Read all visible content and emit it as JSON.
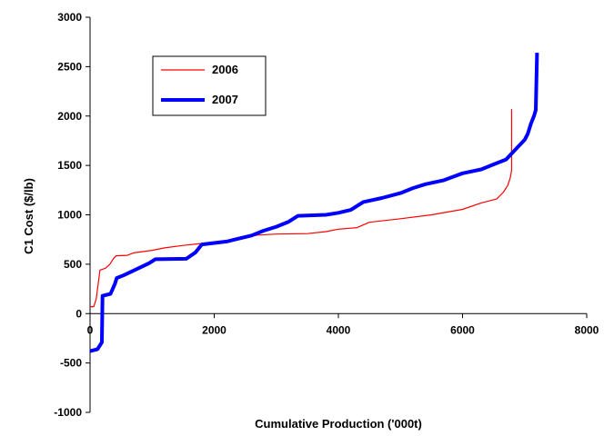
{
  "chart_data": {
    "type": "line",
    "title": "",
    "xlabel": "Cumulative Production ('000t)",
    "ylabel": "C1 Cost ($/lb)",
    "xlim": [
      0,
      8000
    ],
    "ylim": [
      -1000,
      3000
    ],
    "xticks": [
      0,
      2000,
      4000,
      6000,
      8000
    ],
    "yticks": [
      -1000,
      -500,
      0,
      500,
      1000,
      1500,
      2000,
      2500,
      3000
    ],
    "grid": false,
    "legend": "top-left-inside",
    "series": [
      {
        "name": "2006",
        "color": "#ff0000",
        "width": "thin",
        "points": [
          [
            0,
            70
          ],
          [
            60,
            70
          ],
          [
            100,
            150
          ],
          [
            160,
            440
          ],
          [
            250,
            460
          ],
          [
            320,
            500
          ],
          [
            380,
            560
          ],
          [
            420,
            585
          ],
          [
            600,
            590
          ],
          [
            700,
            615
          ],
          [
            1000,
            640
          ],
          [
            1200,
            665
          ],
          [
            1500,
            690
          ],
          [
            1800,
            710
          ],
          [
            2100,
            730
          ],
          [
            2400,
            760
          ],
          [
            2700,
            795
          ],
          [
            3000,
            805
          ],
          [
            3500,
            810
          ],
          [
            3800,
            830
          ],
          [
            4000,
            855
          ],
          [
            4300,
            870
          ],
          [
            4500,
            925
          ],
          [
            5000,
            960
          ],
          [
            5500,
            1000
          ],
          [
            6000,
            1055
          ],
          [
            6300,
            1120
          ],
          [
            6550,
            1160
          ],
          [
            6660,
            1230
          ],
          [
            6730,
            1300
          ],
          [
            6770,
            1380
          ],
          [
            6790,
            1450
          ],
          [
            6790,
            2070
          ]
        ]
      },
      {
        "name": "2007",
        "color": "#0000ff",
        "width": "thick",
        "points": [
          [
            0,
            -380
          ],
          [
            120,
            -360
          ],
          [
            190,
            -290
          ],
          [
            200,
            180
          ],
          [
            330,
            200
          ],
          [
            400,
            300
          ],
          [
            430,
            360
          ],
          [
            550,
            390
          ],
          [
            750,
            450
          ],
          [
            950,
            510
          ],
          [
            1050,
            550
          ],
          [
            1550,
            555
          ],
          [
            1700,
            620
          ],
          [
            1800,
            700
          ],
          [
            2200,
            730
          ],
          [
            2600,
            790
          ],
          [
            2800,
            840
          ],
          [
            3000,
            880
          ],
          [
            3200,
            930
          ],
          [
            3350,
            990
          ],
          [
            3800,
            1000
          ],
          [
            4000,
            1020
          ],
          [
            4200,
            1050
          ],
          [
            4400,
            1130
          ],
          [
            4700,
            1170
          ],
          [
            5000,
            1220
          ],
          [
            5200,
            1270
          ],
          [
            5400,
            1310
          ],
          [
            5700,
            1350
          ],
          [
            6000,
            1420
          ],
          [
            6300,
            1460
          ],
          [
            6500,
            1510
          ],
          [
            6700,
            1560
          ],
          [
            6850,
            1660
          ],
          [
            7000,
            1760
          ],
          [
            7050,
            1820
          ],
          [
            7100,
            1920
          ],
          [
            7150,
            2000
          ],
          [
            7180,
            2060
          ],
          [
            7200,
            2640
          ]
        ]
      }
    ]
  }
}
